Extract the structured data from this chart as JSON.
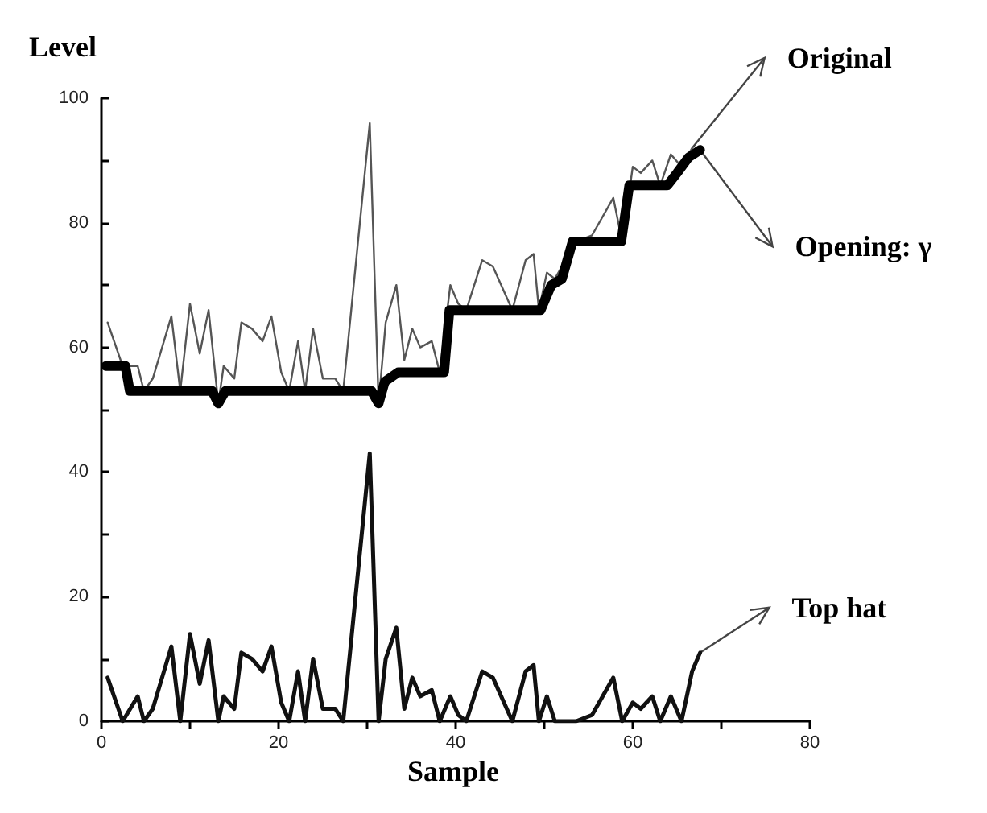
{
  "chart_data": {
    "type": "line",
    "xlabel": "Sample",
    "ylabel": "Level",
    "xlim": [
      0,
      80
    ],
    "ylim": [
      0,
      100
    ],
    "xticks": [
      0,
      {
        "value": 10,
        "label": null
      },
      20,
      {
        "value": 30,
        "label": null
      },
      40,
      {
        "value": 50,
        "label": null
      },
      60,
      {
        "value": 70,
        "label": null
      },
      80
    ],
    "yticks": [
      0,
      {
        "value": 10,
        "label": null
      },
      20,
      {
        "value": 30,
        "label": null
      },
      40,
      {
        "value": 50,
        "label": null
      },
      60,
      {
        "value": 70,
        "label": null
      },
      80,
      {
        "value": 90,
        "label": null
      },
      100
    ],
    "grid": false,
    "legend": false,
    "marker": "none",
    "line_style": "solid",
    "series": [
      {
        "name": "Original",
        "color": "#555555",
        "x": [
          0.7,
          2.4,
          4.1,
          4.8,
          5.8,
          7.9,
          8.9,
          10,
          11.1,
          12.1,
          13.2,
          13.8,
          15,
          15.8,
          17,
          18.2,
          19.2,
          20.3,
          21.2,
          22.2,
          23,
          23.9,
          25,
          26.4,
          27.3,
          30.3,
          31.3,
          32.1,
          33.3,
          34.2,
          35.1,
          36,
          37.3,
          38.2,
          39.4,
          40.3,
          41.2,
          43,
          44.2,
          46.4,
          47.9,
          48.8,
          49.4,
          50.3,
          51.2,
          53.6,
          55.4,
          57.8,
          58.8,
          60,
          60.9,
          62.2,
          63.1,
          64.3,
          65.5,
          66.7
        ],
        "values": [
          64,
          57,
          57,
          53,
          55,
          65,
          53,
          67,
          59,
          66,
          51,
          57,
          55,
          64,
          63,
          61,
          65,
          56,
          53,
          61,
          53,
          63,
          55,
          55,
          53,
          96,
          51,
          64,
          70,
          58,
          63,
          60,
          61,
          56,
          70,
          67,
          66,
          74,
          73,
          66,
          74,
          75,
          66,
          72,
          71,
          77,
          78,
          84,
          77,
          89,
          88,
          90,
          86,
          91,
          89,
          92
        ]
      },
      {
        "name": "Opening: γ",
        "color": "#000000",
        "x": [
          0.5,
          2.7,
          3.2,
          12.5,
          13.2,
          14,
          30.5,
          31.3,
          32,
          33.5,
          38.7,
          39.3,
          49.6,
          50.8,
          52,
          53.2,
          58.7,
          59.6,
          63.9,
          65,
          66.3,
          67.6
        ],
        "values": [
          57,
          57,
          53,
          53,
          51,
          53,
          53,
          51,
          54.5,
          56,
          56,
          66,
          66,
          70,
          71,
          77,
          77,
          86,
          86,
          88,
          90.5,
          91.7
        ]
      },
      {
        "name": "Top hat",
        "color": "#111111",
        "x": [
          0.7,
          2.4,
          4.1,
          4.8,
          5.8,
          7.9,
          8.9,
          10,
          11.1,
          12.1,
          13.2,
          13.8,
          15,
          15.8,
          17,
          18.2,
          19.2,
          20.3,
          21.2,
          22.2,
          23,
          23.9,
          25,
          26.4,
          27.3,
          30.3,
          31.3,
          32.1,
          33.3,
          34.2,
          35.1,
          36,
          37.3,
          38.2,
          39.4,
          40.3,
          41.2,
          43,
          44.2,
          46.4,
          47.9,
          48.8,
          49.4,
          50.3,
          51.2,
          53.6,
          55.4,
          57.8,
          58.8,
          60,
          60.9,
          62.2,
          63.1,
          64.3,
          65.5,
          66.7,
          67.6
        ],
        "values": [
          7,
          0,
          4,
          0,
          2,
          12,
          0,
          14,
          6,
          13,
          0,
          4,
          2,
          11,
          10,
          8,
          12,
          3,
          0,
          8,
          0,
          10,
          2,
          2,
          0,
          43,
          0,
          10,
          15,
          2,
          7,
          4,
          5,
          0,
          4,
          1,
          0,
          8,
          7,
          0,
          8,
          9,
          0,
          4,
          0,
          0,
          1,
          7,
          0,
          3,
          2,
          4,
          0,
          4,
          0,
          8,
          11
        ]
      }
    ]
  }
}
